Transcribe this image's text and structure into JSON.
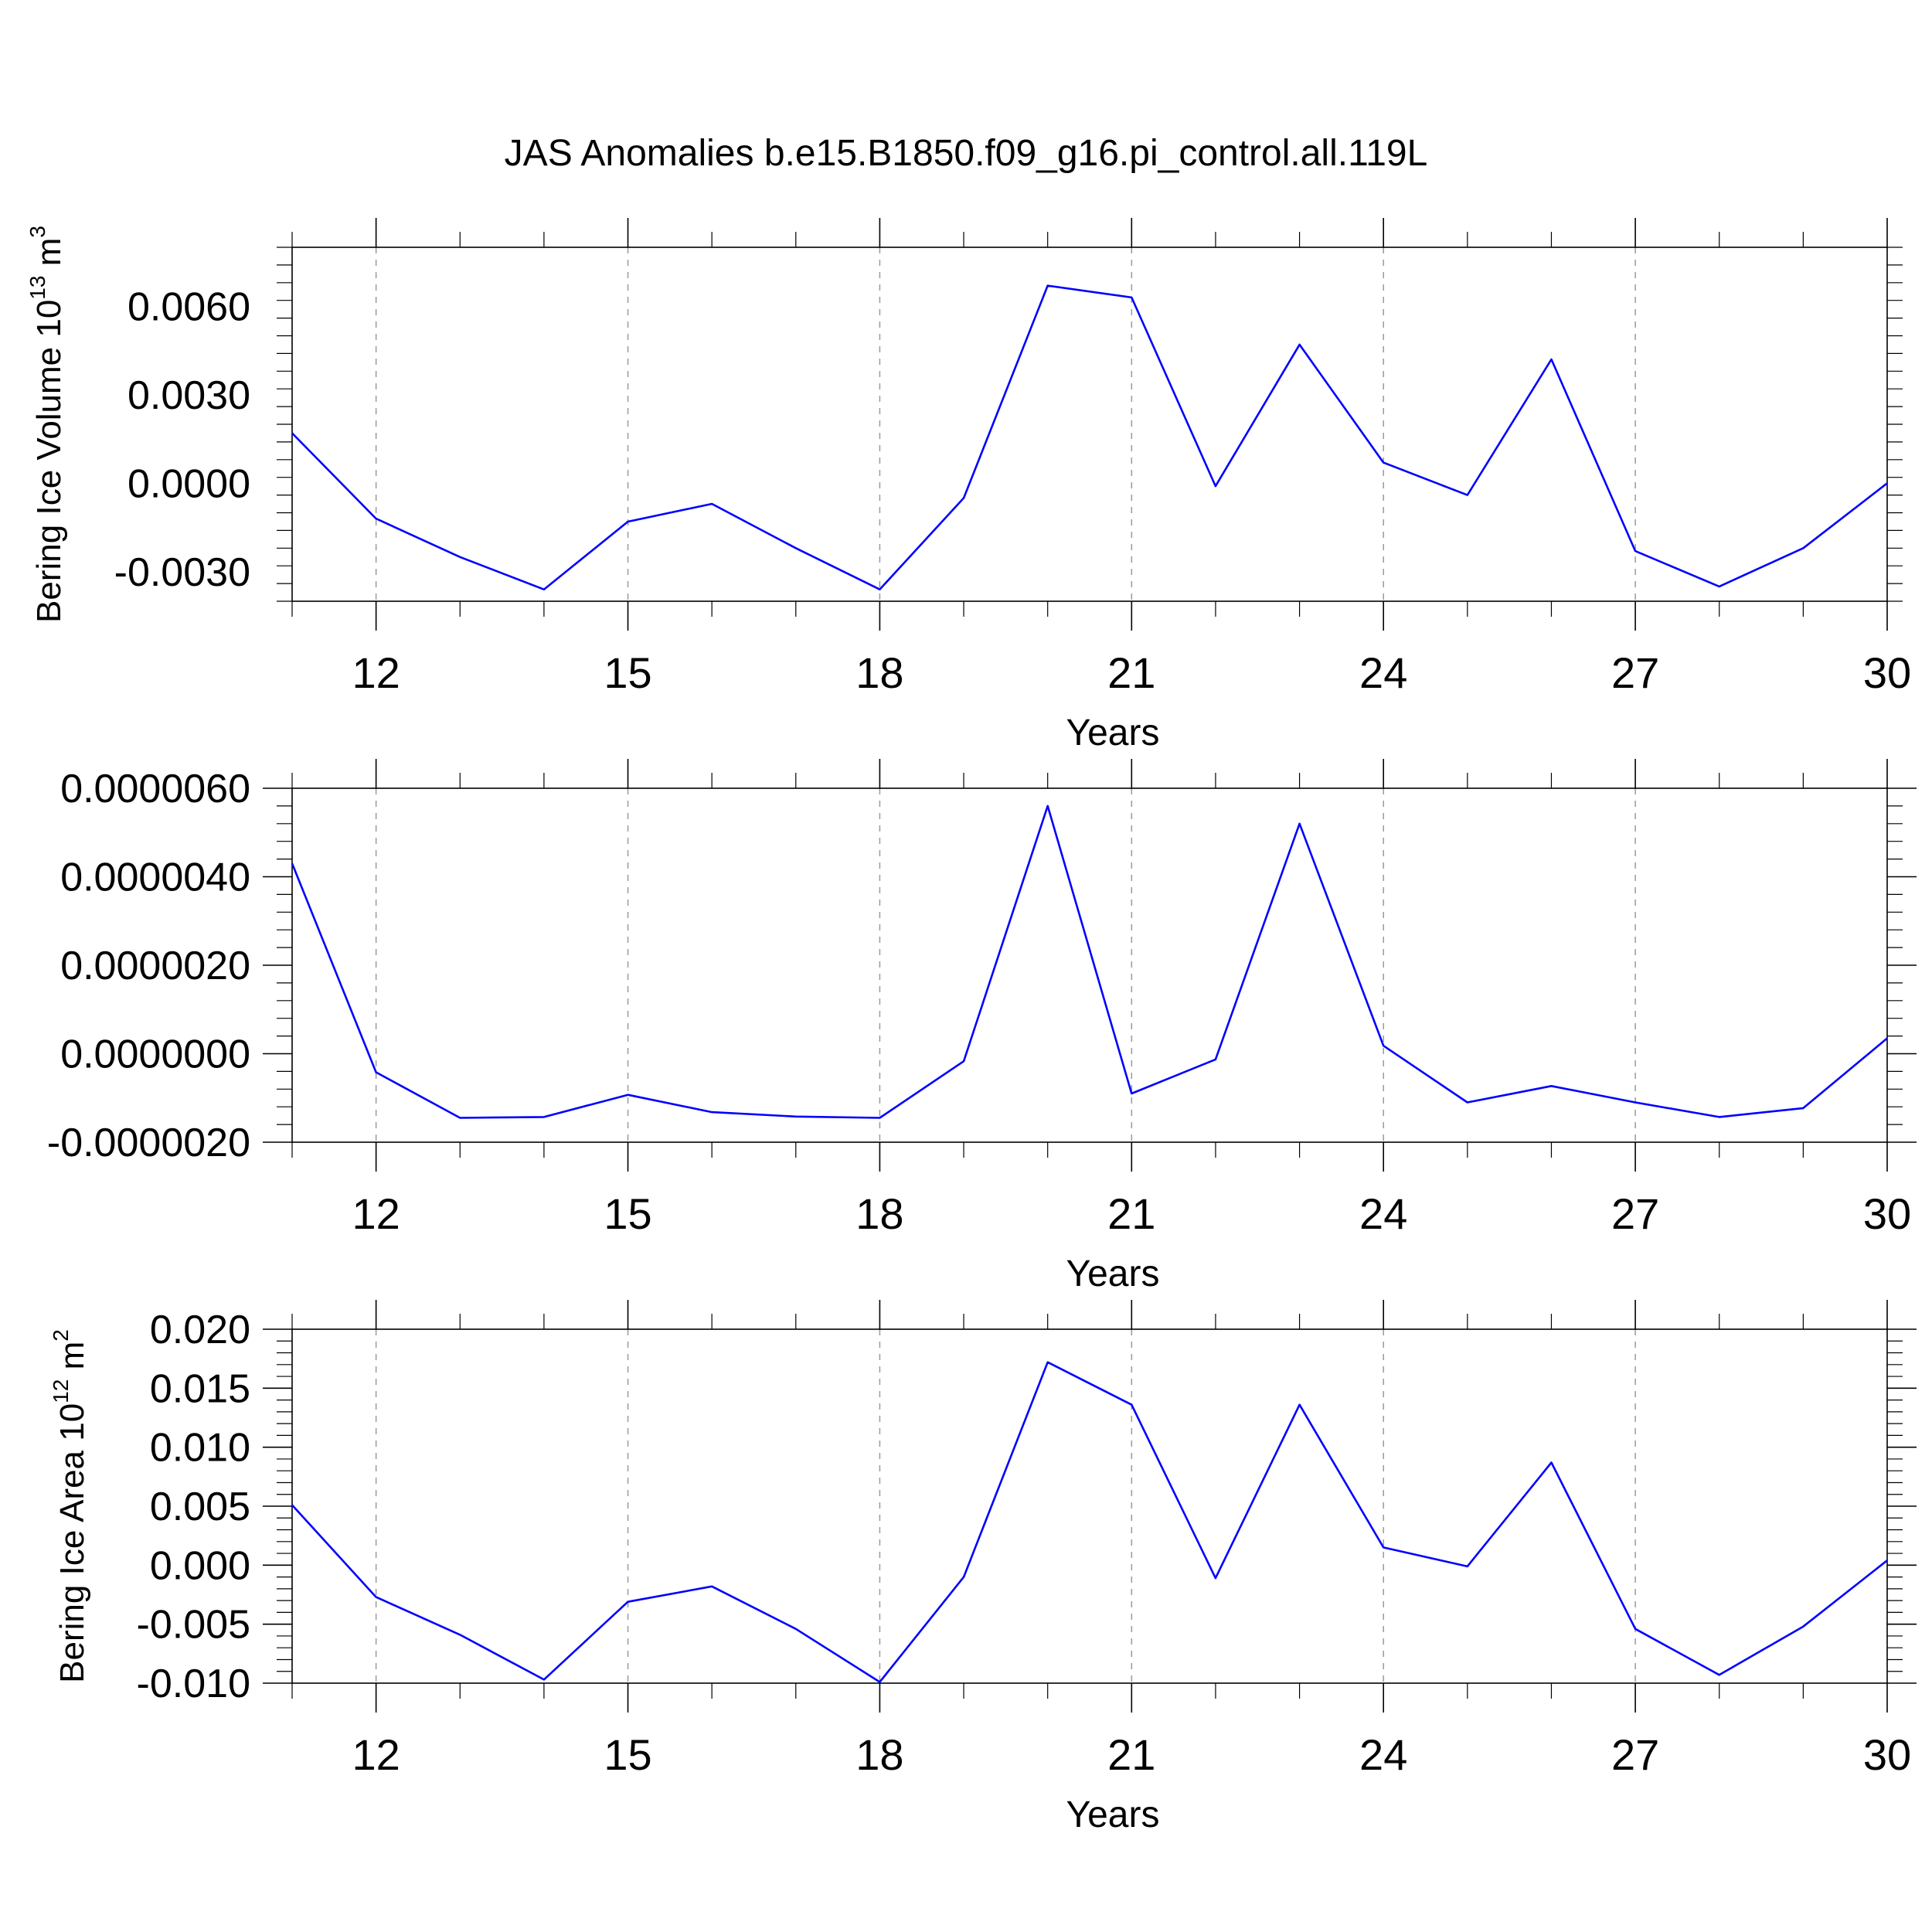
{
  "title": "JAS Anomalies b.e15.B1850.f09_g16.pi_control.all.119L",
  "colors": {
    "series": "#0000ff",
    "grid": "#9a9a9a",
    "axis": "#000000"
  },
  "chart_data": [
    {
      "type": "line",
      "title": "JAS Anomalies b.e15.B1850.f09_g16.pi_control.all.119L",
      "xlabel": "Years",
      "ylabel": "Bering Ice Volume 10",
      "ylabel_sup": "13",
      "ylabel_unit": " m",
      "ylabel_unit_sup": "3",
      "xlim": [
        11,
        30
      ],
      "ylim": [
        -0.004,
        0.008
      ],
      "x_ticks": [
        12,
        15,
        18,
        21,
        24,
        27,
        30
      ],
      "x_tick_labels": [
        "12",
        "15",
        "18",
        "21",
        "24",
        "27",
        "30"
      ],
      "y_ticks": [
        -0.003,
        0.0,
        0.003,
        0.006
      ],
      "y_tick_labels": [
        "-0.0030",
        "0.0000",
        "0.0030",
        "0.0060"
      ],
      "grid": "vertical dashed at major x ticks",
      "x": [
        11,
        12,
        13,
        14,
        15,
        16,
        17,
        18,
        19,
        20,
        21,
        22,
        23,
        24,
        25,
        26,
        27,
        28,
        29,
        30
      ],
      "values": [
        0.0017,
        -0.0012,
        -0.0025,
        -0.0036,
        -0.0013,
        -0.0007,
        -0.0022,
        -0.0036,
        -0.0005,
        0.0067,
        0.0063,
        -0.0001,
        0.0047,
        0.0007,
        -0.0004,
        0.0042,
        -0.0023,
        -0.0035,
        -0.0022,
        0.0
      ]
    },
    {
      "type": "line",
      "xlabel": "Years",
      "ylabel": "",
      "xlim": [
        11,
        30
      ],
      "ylim": [
        -2e-06,
        6e-06
      ],
      "x_ticks": [
        12,
        15,
        18,
        21,
        24,
        27,
        30
      ],
      "x_tick_labels": [
        "12",
        "15",
        "18",
        "21",
        "24",
        "27",
        "30"
      ],
      "y_ticks": [
        -2e-06,
        0.0,
        2e-06,
        4e-06,
        6e-06
      ],
      "y_tick_labels": [
        "-0.0000020",
        "0.0000000",
        "0.0000020",
        "0.0000040",
        "0.0000060"
      ],
      "grid": "vertical dashed at major x ticks",
      "x": [
        11,
        12,
        13,
        14,
        15,
        16,
        17,
        18,
        19,
        20,
        21,
        22,
        23,
        24,
        25,
        26,
        27,
        28,
        29,
        30
      ],
      "values": [
        4.3e-06,
        -4.2e-07,
        -1.45e-06,
        -1.43e-06,
        -9.3e-07,
        -1.32e-06,
        -1.42e-06,
        -1.45e-06,
        -1.7e-07,
        5.6e-06,
        -9e-07,
        -1.3e-07,
        5.2e-06,
        1.8e-07,
        -1.1e-06,
        -7.3e-07,
        -1.1e-06,
        -1.43e-06,
        -1.23e-06,
        3.5e-07
      ]
    },
    {
      "type": "line",
      "xlabel": "Years",
      "ylabel": "Bering Ice Area 10",
      "ylabel_sup": "12",
      "ylabel_unit": " m",
      "ylabel_unit_sup": "2",
      "xlim": [
        11,
        30
      ],
      "ylim": [
        -0.01,
        0.02
      ],
      "x_ticks": [
        12,
        15,
        18,
        21,
        24,
        27,
        30
      ],
      "x_tick_labels": [
        "12",
        "15",
        "18",
        "21",
        "24",
        "27",
        "30"
      ],
      "y_ticks": [
        -0.01,
        -0.005,
        0.0,
        0.005,
        0.01,
        0.015,
        0.02
      ],
      "y_tick_labels": [
        "-0.010",
        "-0.005",
        "0.000",
        "0.005",
        "0.010",
        "0.015",
        "0.020"
      ],
      "grid": "vertical dashed at major x ticks",
      "x": [
        11,
        12,
        13,
        14,
        15,
        16,
        17,
        18,
        19,
        20,
        21,
        22,
        23,
        24,
        25,
        26,
        27,
        28,
        29,
        30
      ],
      "values": [
        0.0051,
        -0.0027,
        -0.0059,
        -0.0097,
        -0.0031,
        -0.0018,
        -0.0054,
        -0.0099,
        -0.001,
        0.0172,
        0.0136,
        -0.0011,
        0.0136,
        0.0015,
        -0.0001,
        0.0087,
        -0.0054,
        -0.0093,
        -0.0052,
        0.0004
      ]
    }
  ]
}
